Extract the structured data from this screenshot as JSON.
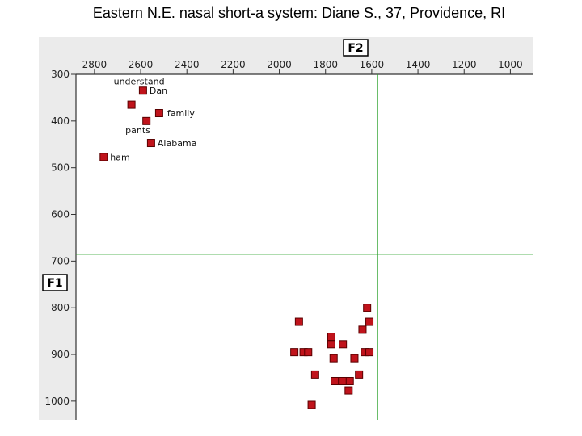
{
  "title": "Eastern N.E. nasal short-a system: Diane S., 37, Providence, RI",
  "colors": {
    "background": "#ffffff",
    "panel": "#ebebeb",
    "plot_area": "#ffffff",
    "axis": "#333333",
    "reference_line": "#2aa02a",
    "marker_fill": "#c0131b",
    "marker_stroke": "#5a0000"
  },
  "chart_data": {
    "type": "scatter",
    "title": "Eastern N.E. nasal short-a system: Diane S., 37, Providence, RI",
    "xlabel": "F2",
    "ylabel": "F1",
    "xlim": [
      2880,
      900
    ],
    "ylim": [
      300,
      1040
    ],
    "x_reversed": true,
    "y_reversed": true,
    "x_ticks": [
      2800,
      2600,
      2400,
      2200,
      2000,
      1800,
      1600,
      1400,
      1200,
      1000
    ],
    "y_ticks": [
      300,
      400,
      500,
      600,
      700,
      800,
      900,
      1000
    ],
    "x_tick_labels": [
      "2800",
      "2600",
      "2400",
      "2200",
      "2000",
      "1800",
      "1600",
      "1400",
      "1200",
      "1000"
    ],
    "y_tick_labels": [
      "300",
      "400",
      "500",
      "600",
      "700",
      "800",
      "900",
      "1000"
    ],
    "reference_lines": {
      "x": 1575,
      "y": 685
    },
    "grid": false,
    "points": [
      {
        "x": 2590,
        "y": 335,
        "label": "Dan"
      },
      {
        "x": 2640,
        "y": 365,
        "label": "understand"
      },
      {
        "x": 2520,
        "y": 383,
        "label": "family"
      },
      {
        "x": 2575,
        "y": 400,
        "label": "pants"
      },
      {
        "x": 2555,
        "y": 447,
        "label": "Alabama"
      },
      {
        "x": 2760,
        "y": 477,
        "label": "ham"
      },
      {
        "x": 1620,
        "y": 800,
        "label": ""
      },
      {
        "x": 1915,
        "y": 830,
        "label": ""
      },
      {
        "x": 1610,
        "y": 830,
        "label": ""
      },
      {
        "x": 1640,
        "y": 847,
        "label": ""
      },
      {
        "x": 1775,
        "y": 862,
        "label": ""
      },
      {
        "x": 1775,
        "y": 878,
        "label": ""
      },
      {
        "x": 1725,
        "y": 878,
        "label": ""
      },
      {
        "x": 1935,
        "y": 895,
        "label": ""
      },
      {
        "x": 1895,
        "y": 895,
        "label": ""
      },
      {
        "x": 1875,
        "y": 895,
        "label": ""
      },
      {
        "x": 1630,
        "y": 895,
        "label": ""
      },
      {
        "x": 1610,
        "y": 895,
        "label": ""
      },
      {
        "x": 1765,
        "y": 908,
        "label": ""
      },
      {
        "x": 1675,
        "y": 908,
        "label": ""
      },
      {
        "x": 1845,
        "y": 943,
        "label": ""
      },
      {
        "x": 1655,
        "y": 943,
        "label": ""
      },
      {
        "x": 1760,
        "y": 957,
        "label": ""
      },
      {
        "x": 1725,
        "y": 957,
        "label": ""
      },
      {
        "x": 1695,
        "y": 957,
        "label": ""
      },
      {
        "x": 1700,
        "y": 977,
        "label": ""
      },
      {
        "x": 1860,
        "y": 1008,
        "label": ""
      }
    ]
  }
}
